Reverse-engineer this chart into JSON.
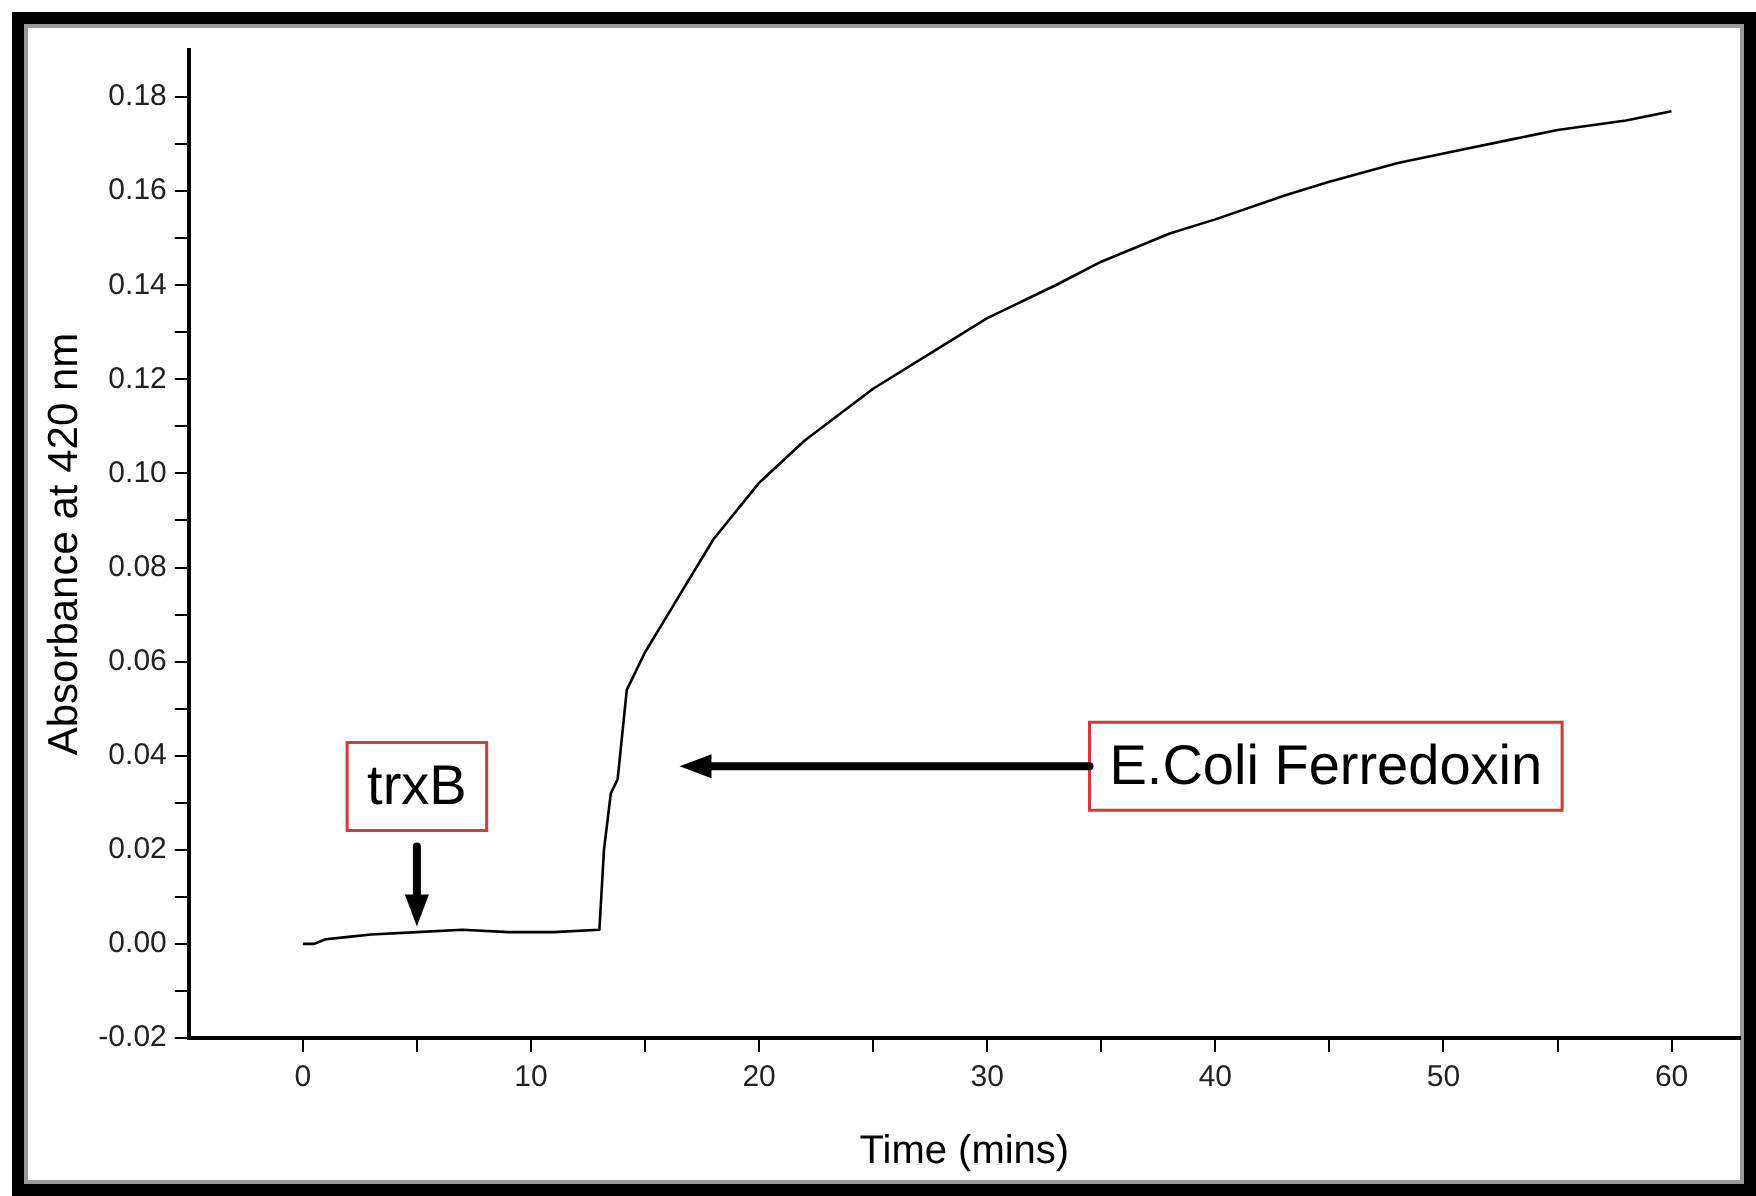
{
  "chart_data": {
    "type": "line",
    "xlabel": "Time (mins)",
    "ylabel": "Absorbance at 420 nm",
    "x": [
      0,
      0.5,
      1,
      2,
      3,
      5,
      7,
      9,
      11,
      13,
      13.2,
      13.5,
      13.8,
      14.2,
      15,
      16,
      17,
      18,
      20,
      22,
      25,
      28,
      30,
      33,
      35,
      38,
      40,
      43,
      45,
      48,
      50,
      53,
      55,
      58,
      60
    ],
    "series": [
      {
        "color": "#000000",
        "values": [
          0.0,
          0.0,
          0.001,
          0.0015,
          0.002,
          0.0025,
          0.003,
          0.0025,
          0.0025,
          0.003,
          0.02,
          0.032,
          0.035,
          0.054,
          0.062,
          0.07,
          0.078,
          0.086,
          0.098,
          0.107,
          0.118,
          0.127,
          0.133,
          0.14,
          0.145,
          0.151,
          0.154,
          0.159,
          0.162,
          0.166,
          0.168,
          0.171,
          0.173,
          0.175,
          0.177
        ]
      }
    ],
    "xlim": [
      -5,
      63
    ],
    "ylim": [
      -0.02,
      0.19
    ],
    "xticks": [
      0,
      {
        "value": 5,
        "label": null
      },
      10,
      {
        "value": 15,
        "label": null
      },
      20,
      {
        "value": 25,
        "label": null
      },
      30,
      {
        "value": 35,
        "label": null
      },
      40,
      {
        "value": 45,
        "label": null
      },
      50,
      {
        "value": 55,
        "label": null
      },
      60
    ],
    "yticks": [
      {
        "value": -0.02,
        "label": "-0.02"
      },
      {
        "value": -0.01,
        "label": null
      },
      {
        "value": 0,
        "label": "0.00"
      },
      {
        "value": 0.01,
        "label": null
      },
      {
        "value": 0.02,
        "label": "0.02"
      },
      {
        "value": 0.03,
        "label": null
      },
      {
        "value": 0.04,
        "label": "0.04"
      },
      {
        "value": 0.05,
        "label": null
      },
      {
        "value": 0.06,
        "label": "0.06"
      },
      {
        "value": 0.07,
        "label": null
      },
      {
        "value": 0.08,
        "label": "0.08"
      },
      {
        "value": 0.09,
        "label": null
      },
      {
        "value": 0.1,
        "label": "0.10"
      },
      {
        "value": 0.11,
        "label": null
      },
      {
        "value": 0.12,
        "label": "0.12"
      },
      {
        "value": 0.13,
        "label": null
      },
      {
        "value": 0.14,
        "label": "0.14"
      },
      {
        "value": 0.15,
        "label": null
      },
      {
        "value": 0.16,
        "label": "0.16"
      },
      {
        "value": 0.17,
        "label": null
      },
      {
        "value": 0.18,
        "label": "0.18"
      }
    ],
    "annotations": [
      {
        "text": "trxB",
        "x": 5,
        "y": 0.0037
      },
      "E.Coli Ferredoxin"
    ],
    "grid": false,
    "legend": false,
    "marker": "none",
    "line_style": "solid"
  }
}
